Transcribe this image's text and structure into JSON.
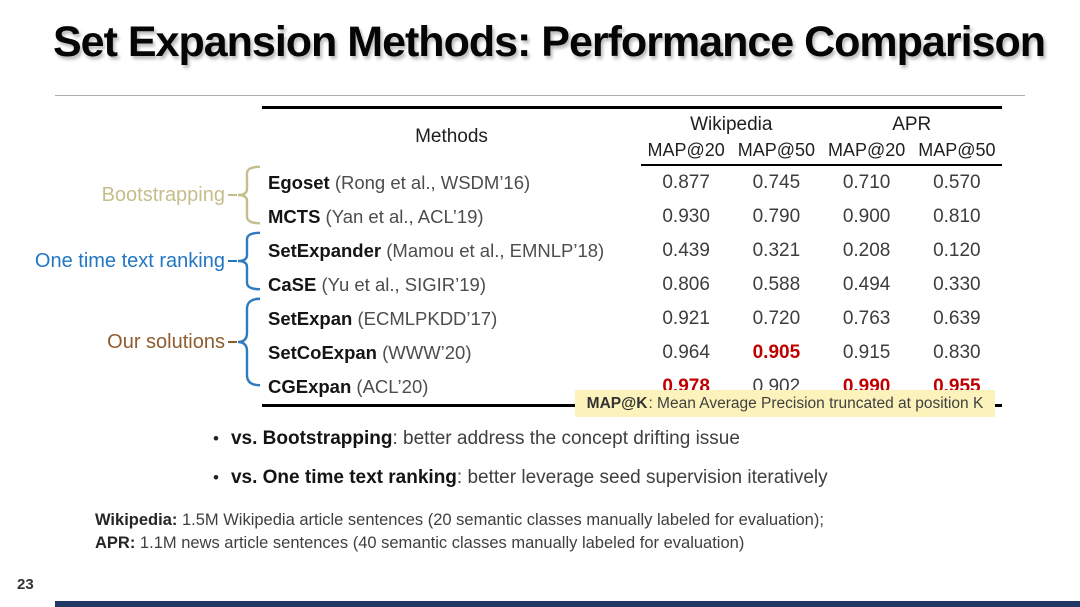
{
  "title": "Set Expansion Methods: Performance Comparison",
  "page_number": "23",
  "table": {
    "methods_header": "Methods",
    "dataset_headers": [
      "Wikipedia",
      "APR"
    ],
    "metric_headers": [
      "MAP@20",
      "MAP@50",
      "MAP@20",
      "MAP@50"
    ],
    "rows": [
      {
        "method": "Egoset",
        "citation": "(Rong et al., WSDM’16)",
        "values": [
          "0.877",
          "0.745",
          "0.710",
          "0.570"
        ],
        "red": [
          false,
          false,
          false,
          false
        ]
      },
      {
        "method": "MCTS",
        "citation": "(Yan et al., ACL’19)",
        "values": [
          "0.930",
          "0.790",
          "0.900",
          "0.810"
        ],
        "red": [
          false,
          false,
          false,
          false
        ]
      },
      {
        "method": "SetExpander",
        "citation": "(Mamou et al., EMNLP’18)",
        "values": [
          "0.439",
          "0.321",
          "0.208",
          "0.120"
        ],
        "red": [
          false,
          false,
          false,
          false
        ]
      },
      {
        "method": "CaSE",
        "citation": "(Yu et al., SIGIR’19)",
        "values": [
          "0.806",
          "0.588",
          "0.494",
          "0.330"
        ],
        "red": [
          false,
          false,
          false,
          false
        ]
      },
      {
        "method": "SetExpan",
        "citation": "(ECMLPKDD’17)",
        "values": [
          "0.921",
          "0.720",
          "0.763",
          "0.639"
        ],
        "red": [
          false,
          false,
          false,
          false
        ]
      },
      {
        "method": "SetCoExpan",
        "citation": "(WWW’20)",
        "values": [
          "0.964",
          "0.905",
          "0.915",
          "0.830"
        ],
        "red": [
          false,
          true,
          false,
          false
        ]
      },
      {
        "method": "CGExpan",
        "citation": "(ACL’20)",
        "values": [
          "0.978",
          "0.902",
          "0.990",
          "0.955"
        ],
        "red": [
          true,
          false,
          true,
          true
        ]
      }
    ]
  },
  "method_groups": [
    {
      "label": "Bootstrapping",
      "label_color": "#c6bd8c",
      "tick_color": "#c6bd8c",
      "brace_color": "#c6bd8c"
    },
    {
      "label": "One time text ranking",
      "label_color": "#2277c3",
      "tick_color": "#2277c3",
      "brace_color": "#2e7bbf"
    },
    {
      "label": "Our solutions",
      "label_color": "#8e5c2e",
      "tick_color": "#8e5c2e",
      "brace_color": "#2e7bbf"
    }
  ],
  "note": {
    "term": "MAP@K",
    "text": ": Mean Average Precision truncated at position K",
    "highlight_color": "#fbf3bb"
  },
  "bullets": [
    {
      "lead": "vs. Bootstrapping",
      "text": ": better address the concept drifting issue"
    },
    {
      "lead": "vs. One time text ranking",
      "text": ": better leverage seed supervision iteratively"
    }
  ],
  "footnotes": [
    {
      "lead": "Wikipedia:",
      "text": " 1.5M Wikipedia article sentences (20 semantic classes manually labeled for evaluation);"
    },
    {
      "lead": "APR:",
      "text": " 1.1M news article sentences (40 semantic classes manually labeled for evaluation)"
    }
  ],
  "colors": {
    "accent_red": "#c00000",
    "highlight_yellow": "#fbf3bb",
    "bottom_bar_navy": "#203864"
  }
}
